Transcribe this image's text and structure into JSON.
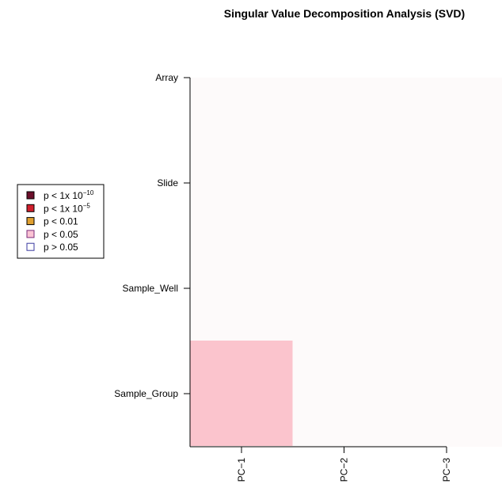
{
  "chart_data": {
    "type": "heatmap",
    "title": "Singular Value Decomposition Analysis (SVD)",
    "x_categories": [
      "PC−1",
      "PC−2",
      "PC−3"
    ],
    "y_categories": [
      "Sample_Group",
      "Sample_Well",
      "Slide",
      "Array"
    ],
    "cells": [
      {
        "row": "Sample_Group",
        "col": "PC−1",
        "level": "p < 0.05"
      }
    ],
    "legend": {
      "placement": "left",
      "items": [
        {
          "base": "p < 1x 10",
          "sup": "−10",
          "color": "#6b0f2a",
          "border": "#000000"
        },
        {
          "base": "p < 1x 10",
          "sup": "−5",
          "color": "#d11f2d",
          "border": "#000000"
        },
        {
          "base": "p < 0.01",
          "sup": "",
          "color": "#e0a030",
          "border": "#000000"
        },
        {
          "base": "p < 0.05",
          "sup": "",
          "color": "#fbc4d4",
          "border": "#7a2a7a"
        },
        {
          "base": "p > 0.05",
          "sup": "",
          "color": "#ffffff",
          "border": "#3a3aa0"
        }
      ]
    },
    "colors": {
      "cell_fill": "#fbc4cd",
      "panel_bg": "#fdfafa",
      "axis": "#000000"
    },
    "grid": false
  }
}
